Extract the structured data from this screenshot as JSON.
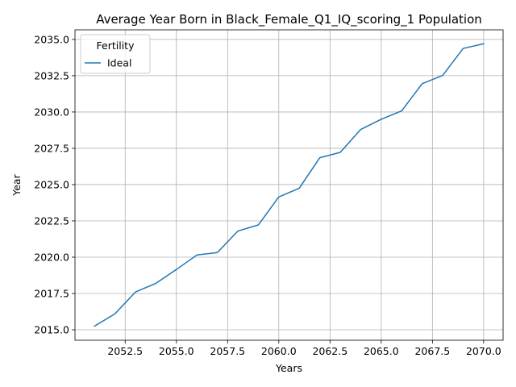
{
  "chart_data": {
    "type": "line",
    "title": "Average Year Born in Black_Female_Q1_IQ_scoring_1 Population",
    "xlabel": "Years",
    "ylabel": "Year",
    "xlim": [
      2050.05,
      2070.95
    ],
    "ylim": [
      2014.28,
      2035.66
    ],
    "x_ticks": [
      2052.5,
      2055.0,
      2057.5,
      2060.0,
      2062.5,
      2065.0,
      2067.5,
      2070.0
    ],
    "x_tick_labels": [
      "2052.5",
      "2055.0",
      "2057.5",
      "2060.0",
      "2062.5",
      "2065.0",
      "2067.5",
      "2070.0"
    ],
    "y_ticks": [
      2015.0,
      2017.5,
      2020.0,
      2022.5,
      2025.0,
      2027.5,
      2030.0,
      2032.5,
      2035.0
    ],
    "y_tick_labels": [
      "2015.0",
      "2017.5",
      "2020.0",
      "2022.5",
      "2025.0",
      "2027.5",
      "2030.0",
      "2032.5",
      "2035.0"
    ],
    "grid": true,
    "legend": {
      "title": "Fertility",
      "placement": "upper-left"
    },
    "series": [
      {
        "name": "Ideal",
        "color": "#1f77b4",
        "x": [
          2051,
          2052,
          2053,
          2054,
          2055,
          2056,
          2057,
          2058,
          2059,
          2060,
          2061,
          2062,
          2063,
          2064,
          2065,
          2066,
          2067,
          2068,
          2069,
          2070
        ],
        "y": [
          2015.25,
          2016.1,
          2017.6,
          2018.2,
          2019.15,
          2020.15,
          2020.32,
          2021.8,
          2022.22,
          2024.15,
          2024.75,
          2026.85,
          2027.22,
          2028.8,
          2029.5,
          2030.08,
          2031.95,
          2032.52,
          2034.38,
          2034.7
        ]
      }
    ]
  }
}
